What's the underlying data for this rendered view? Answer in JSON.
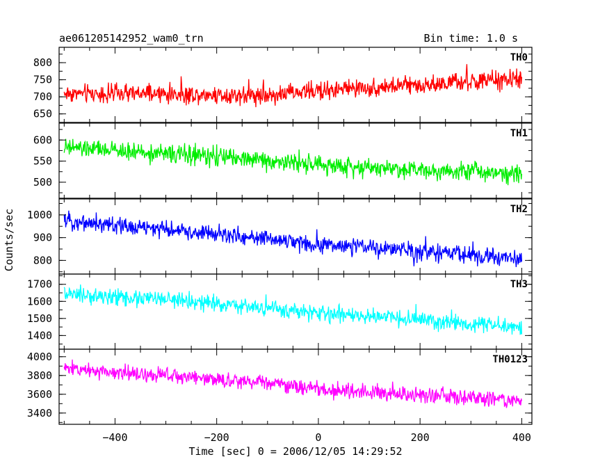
{
  "header": {
    "title": "ae061205142952_wam0_trn",
    "bin_time": "Bin time: 1.0 s"
  },
  "chart_data": {
    "type": "line",
    "xlabel": "Time [sec] 0 = 2006/12/05 14:29:52",
    "ylabel": "Counts/sec",
    "xlim": [
      -510,
      420
    ],
    "x_ticks": [
      -400,
      -200,
      0,
      200,
      400
    ],
    "x_range": [
      -500,
      400
    ],
    "bin_time_s": 1.0,
    "grid": false,
    "panels": [
      {
        "name": "TH0",
        "color": "#ff0000",
        "ylim": [
          625,
          845
        ],
        "y_ticks": [
          650,
          700,
          750,
          800
        ],
        "y_tick_labels": [
          "650",
          "700",
          "750",
          "800"
        ],
        "trend": [
          [
            -500,
            710
          ],
          [
            -300,
            708
          ],
          [
            -100,
            705
          ],
          [
            0,
            718
          ],
          [
            200,
            735
          ],
          [
            400,
            752
          ]
        ],
        "noise_amp": 40
      },
      {
        "name": "TH1",
        "color": "#00ee00",
        "ylim": [
          462,
          640
        ],
        "y_ticks": [
          500,
          550,
          600
        ],
        "y_tick_labels": [
          "500",
          "550",
          "600"
        ],
        "trend": [
          [
            -500,
            582
          ],
          [
            -300,
            568
          ],
          [
            -100,
            552
          ],
          [
            0,
            540
          ],
          [
            200,
            530
          ],
          [
            400,
            522
          ]
        ],
        "noise_amp": 32
      },
      {
        "name": "TH2",
        "color": "#0000ff",
        "ylim": [
          740,
          1070
        ],
        "y_ticks": [
          800,
          900,
          1000
        ],
        "y_tick_labels": [
          "800",
          "900",
          "1000"
        ],
        "trend": [
          [
            -500,
            975
          ],
          [
            -300,
            935
          ],
          [
            -100,
            895
          ],
          [
            0,
            870
          ],
          [
            200,
            840
          ],
          [
            400,
            805
          ]
        ],
        "noise_amp": 55
      },
      {
        "name": "TH3",
        "color": "#00ffff",
        "ylim": [
          1320,
          1760
        ],
        "y_ticks": [
          1400,
          1500,
          1600,
          1700
        ],
        "y_tick_labels": [
          "1400",
          "1500",
          "1600",
          "1700"
        ],
        "trend": [
          [
            -500,
            1640
          ],
          [
            -300,
            1610
          ],
          [
            -100,
            1560
          ],
          [
            0,
            1530
          ],
          [
            200,
            1490
          ],
          [
            400,
            1445
          ]
        ],
        "noise_amp": 70
      },
      {
        "name": "TH0123",
        "color": "#ff00ff",
        "ylim": [
          3280,
          4080
        ],
        "y_ticks": [
          3400,
          3600,
          3800,
          4000
        ],
        "y_tick_labels": [
          "3400",
          "3600",
          "3800",
          "4000"
        ],
        "trend": [
          [
            -500,
            3880
          ],
          [
            -300,
            3800
          ],
          [
            -100,
            3720
          ],
          [
            0,
            3650
          ],
          [
            200,
            3590
          ],
          [
            400,
            3530
          ]
        ],
        "noise_amp": 120
      }
    ]
  }
}
